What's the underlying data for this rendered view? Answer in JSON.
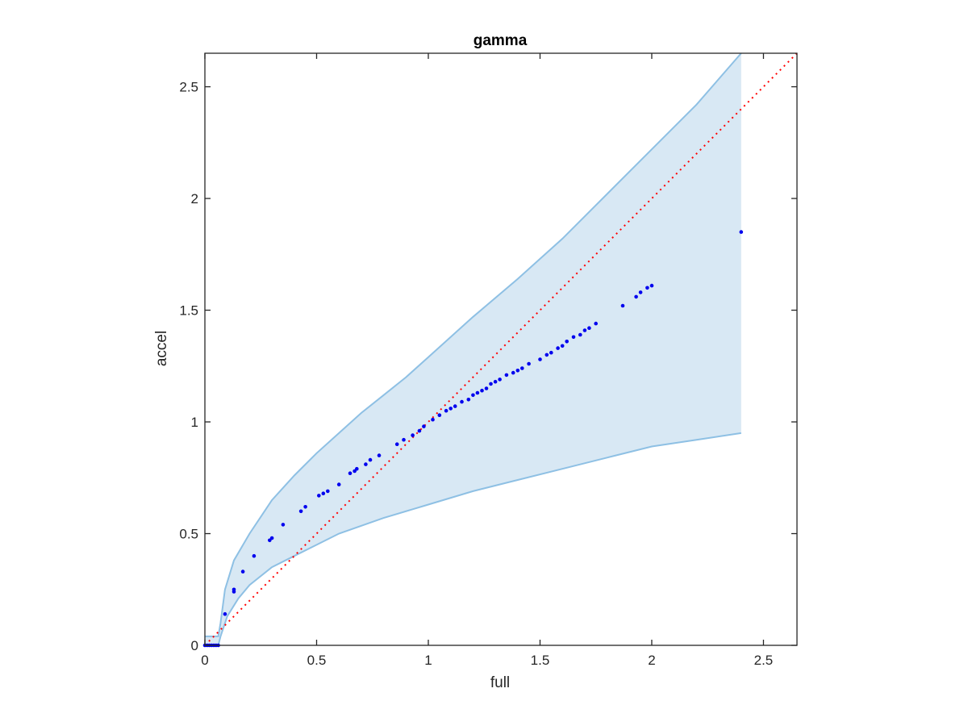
{
  "chart_data": {
    "type": "scatter",
    "title": "gamma",
    "xlabel": "full",
    "ylabel": "accel",
    "xlim": [
      0,
      2.65
    ],
    "ylim": [
      0,
      2.65
    ],
    "xticks": [
      0,
      0.5,
      1,
      1.5,
      2,
      2.5
    ],
    "yticks": [
      0,
      0.5,
      1,
      1.5,
      2,
      2.5
    ],
    "xtick_labels": [
      "0",
      "0.5",
      "1",
      "1.5",
      "2",
      "2.5"
    ],
    "ytick_labels": [
      "0",
      "0.5",
      "1",
      "1.5",
      "2",
      "2.5"
    ],
    "grid": false,
    "box": true,
    "colors": {
      "points": "#0000ee",
      "band_fill": "#d8e8f4",
      "band_edge": "#8ec0e4",
      "reference_line": "#ff0000",
      "axes": "#262626"
    },
    "band": {
      "upper": [
        [
          0,
          0.04
        ],
        [
          0.06,
          0.04
        ],
        [
          0.07,
          0.1
        ],
        [
          0.09,
          0.25
        ],
        [
          0.13,
          0.38
        ],
        [
          0.2,
          0.5
        ],
        [
          0.3,
          0.65
        ],
        [
          0.4,
          0.76
        ],
        [
          0.5,
          0.86
        ],
        [
          0.6,
          0.95
        ],
        [
          0.7,
          1.04
        ],
        [
          0.8,
          1.12
        ],
        [
          0.9,
          1.2
        ],
        [
          1.0,
          1.29
        ],
        [
          1.2,
          1.47
        ],
        [
          1.4,
          1.64
        ],
        [
          1.6,
          1.82
        ],
        [
          1.8,
          2.02
        ],
        [
          2.0,
          2.22
        ],
        [
          2.2,
          2.42
        ],
        [
          2.4,
          2.65
        ]
      ],
      "lower": [
        [
          0,
          0
        ],
        [
          0.06,
          0
        ],
        [
          0.07,
          0.04
        ],
        [
          0.1,
          0.13
        ],
        [
          0.15,
          0.21
        ],
        [
          0.2,
          0.27
        ],
        [
          0.3,
          0.35
        ],
        [
          0.4,
          0.4
        ],
        [
          0.5,
          0.45
        ],
        [
          0.6,
          0.5
        ],
        [
          0.8,
          0.57
        ],
        [
          1.0,
          0.63
        ],
        [
          1.2,
          0.69
        ],
        [
          1.4,
          0.74
        ],
        [
          1.6,
          0.79
        ],
        [
          1.8,
          0.84
        ],
        [
          2.0,
          0.89
        ],
        [
          2.2,
          0.92
        ],
        [
          2.4,
          0.95
        ]
      ]
    },
    "reference_line": {
      "style": "dotted",
      "from": [
        0,
        0
      ],
      "to": [
        2.65,
        2.65
      ]
    },
    "series": [
      {
        "x": [
          0.0,
          0.01,
          0.02,
          0.03,
          0.04,
          0.05,
          0.06,
          0.09,
          0.13,
          0.13,
          0.17,
          0.22,
          0.29,
          0.3,
          0.35,
          0.43,
          0.45,
          0.51,
          0.53,
          0.55,
          0.6,
          0.65,
          0.67,
          0.68,
          0.72,
          0.74,
          0.78,
          0.86,
          0.89,
          0.93,
          0.96,
          0.98,
          1.02,
          1.05,
          1.08,
          1.1,
          1.12,
          1.15,
          1.18,
          1.2,
          1.22,
          1.24,
          1.26,
          1.28,
          1.3,
          1.32,
          1.35,
          1.38,
          1.4,
          1.42,
          1.45,
          1.5,
          1.53,
          1.55,
          1.58,
          1.6,
          1.62,
          1.65,
          1.68,
          1.7,
          1.72,
          1.75,
          1.87,
          1.93,
          1.95,
          1.98,
          2.0,
          2.4
        ],
        "y": [
          0.0,
          0.0,
          0.0,
          0.0,
          0.0,
          0.0,
          0.0,
          0.14,
          0.24,
          0.25,
          0.33,
          0.4,
          0.47,
          0.48,
          0.54,
          0.6,
          0.62,
          0.67,
          0.68,
          0.69,
          0.72,
          0.77,
          0.78,
          0.79,
          0.81,
          0.83,
          0.85,
          0.9,
          0.92,
          0.94,
          0.96,
          0.98,
          1.01,
          1.03,
          1.05,
          1.06,
          1.07,
          1.09,
          1.1,
          1.12,
          1.13,
          1.14,
          1.15,
          1.17,
          1.18,
          1.19,
          1.21,
          1.22,
          1.23,
          1.24,
          1.26,
          1.28,
          1.3,
          1.31,
          1.33,
          1.34,
          1.36,
          1.38,
          1.39,
          1.41,
          1.42,
          1.44,
          1.52,
          1.56,
          1.58,
          1.6,
          1.61,
          1.85
        ]
      }
    ]
  }
}
